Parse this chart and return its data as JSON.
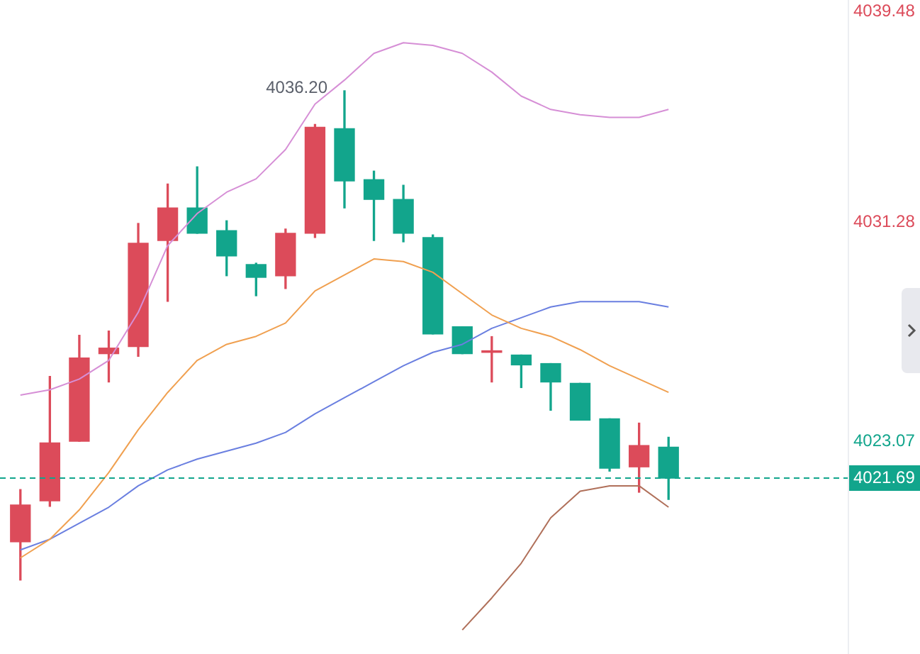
{
  "chart_data": {
    "type": "candlestick",
    "categories": [
      null,
      null,
      null,
      null,
      null,
      null,
      null,
      null,
      null,
      null,
      null,
      null,
      null,
      null,
      null,
      null,
      null,
      null,
      null,
      null,
      null,
      null,
      null
    ],
    "ohlc": [
      [
        4019.3,
        4021.26,
        4017.87,
        4020.68
      ],
      [
        4020.84,
        4025.5,
        4020.63,
        4023.01
      ],
      [
        4023.07,
        4027.04,
        4023.07,
        4026.19
      ],
      [
        4026.35,
        4027.2,
        4025.29,
        4026.56
      ],
      [
        4026.62,
        4031.23,
        4026.25,
        4030.49
      ],
      [
        4030.59,
        4032.71,
        4028.31,
        4031.81
      ],
      [
        4031.81,
        4033.35,
        4030.86,
        4030.86
      ],
      [
        4030.96,
        4031.33,
        4029.27,
        4030.01
      ],
      [
        4029.69,
        4029.74,
        4028.52,
        4029.21
      ],
      [
        4029.27,
        4031.02,
        4028.79,
        4030.86
      ],
      [
        4030.86,
        4034.94,
        4030.7,
        4034.83
      ],
      [
        4034.78,
        4036.2,
        4031.81,
        4032.82
      ],
      [
        4032.87,
        4033.19,
        4030.59,
        4032.13
      ],
      [
        4032.13,
        4032.66,
        4030.54,
        4030.86
      ],
      [
        4030.7,
        4030.8,
        4027.09,
        4027.09
      ],
      [
        4027.36,
        4027.36,
        4026.35,
        4026.35
      ],
      [
        4026.4,
        4026.99,
        4025.29,
        4026.46
      ],
      [
        4026.3,
        4026.3,
        4025.08,
        4025.93
      ],
      [
        4025.98,
        4025.98,
        4024.23,
        4025.29
      ],
      [
        4025.24,
        4025.24,
        4023.86,
        4023.86
      ],
      [
        4023.91,
        4023.91,
        4021.95,
        4022.06
      ],
      [
        4022.11,
        4023.75,
        4021.16,
        4022.91
      ],
      [
        4022.85,
        4023.22,
        4020.89,
        4021.69
      ]
    ],
    "colors": [
      "#dc4b5a",
      "#dc4b5a",
      "#dc4b5a",
      "#dc4b5a",
      "#dc4b5a",
      "#dc4b5a",
      "#12a58c",
      "#12a58c",
      "#12a58c",
      "#dc4b5a",
      "#dc4b5a",
      "#12a58c",
      "#12a58c",
      "#12a58c",
      "#12a58c",
      "#12a58c",
      "#dc4b5a",
      "#12a58c",
      "#12a58c",
      "#12a58c",
      "#12a58c",
      "#dc4b5a",
      "#12a58c"
    ],
    "series": [
      {
        "type": "line",
        "color": "#d68fd6",
        "values": [
          4024.8,
          4025.0,
          4025.4,
          4026.1,
          4027.9,
          4030.4,
          4031.6,
          4032.4,
          4032.9,
          4034.0,
          4035.7,
          4036.6,
          4037.6,
          4038.0,
          4037.9,
          4037.6,
          4036.9,
          4036.0,
          4035.5,
          4035.3,
          4035.2,
          4035.2,
          4035.5
        ]
      },
      {
        "type": "line",
        "color": "#f0a050",
        "values": [
          4018.7,
          4019.4,
          4020.5,
          4021.9,
          4023.5,
          4024.9,
          4026.1,
          4026.7,
          4027.0,
          4027.5,
          4028.7,
          4029.3,
          4029.9,
          4029.8,
          4029.4,
          4028.6,
          4027.8,
          4027.3,
          4027.0,
          4026.5,
          4025.9,
          4025.4,
          4024.9
        ]
      },
      {
        "type": "line",
        "color": "#6a7fe0",
        "values": [
          4019.0,
          4019.4,
          4020.0,
          4020.6,
          4021.4,
          4022.0,
          4022.4,
          4022.7,
          4023.0,
          4023.4,
          4024.1,
          4024.7,
          4025.3,
          4025.9,
          4026.4,
          4026.7,
          4027.3,
          4027.7,
          4028.1,
          4028.3,
          4028.3,
          4028.3,
          4028.1
        ]
      },
      {
        "type": "line",
        "color": "#b0705a",
        "values": [
          null,
          null,
          null,
          null,
          null,
          null,
          null,
          null,
          null,
          null,
          null,
          null,
          null,
          null,
          null,
          4016.0,
          4017.2,
          4018.5,
          4020.2,
          4021.2,
          4021.4,
          4021.4,
          4020.6
        ]
      }
    ],
    "ylim": [
      4015.1,
      4039.6
    ],
    "yticks": [
      4039.48,
      4031.28,
      4023.07
    ],
    "ref_lines": [
      {
        "axis": "y",
        "value": 4021.69,
        "label": "4021.69",
        "color": "#12a58c",
        "line_style": "dashed"
      }
    ],
    "annotations": [
      "4036.20"
    ]
  }
}
